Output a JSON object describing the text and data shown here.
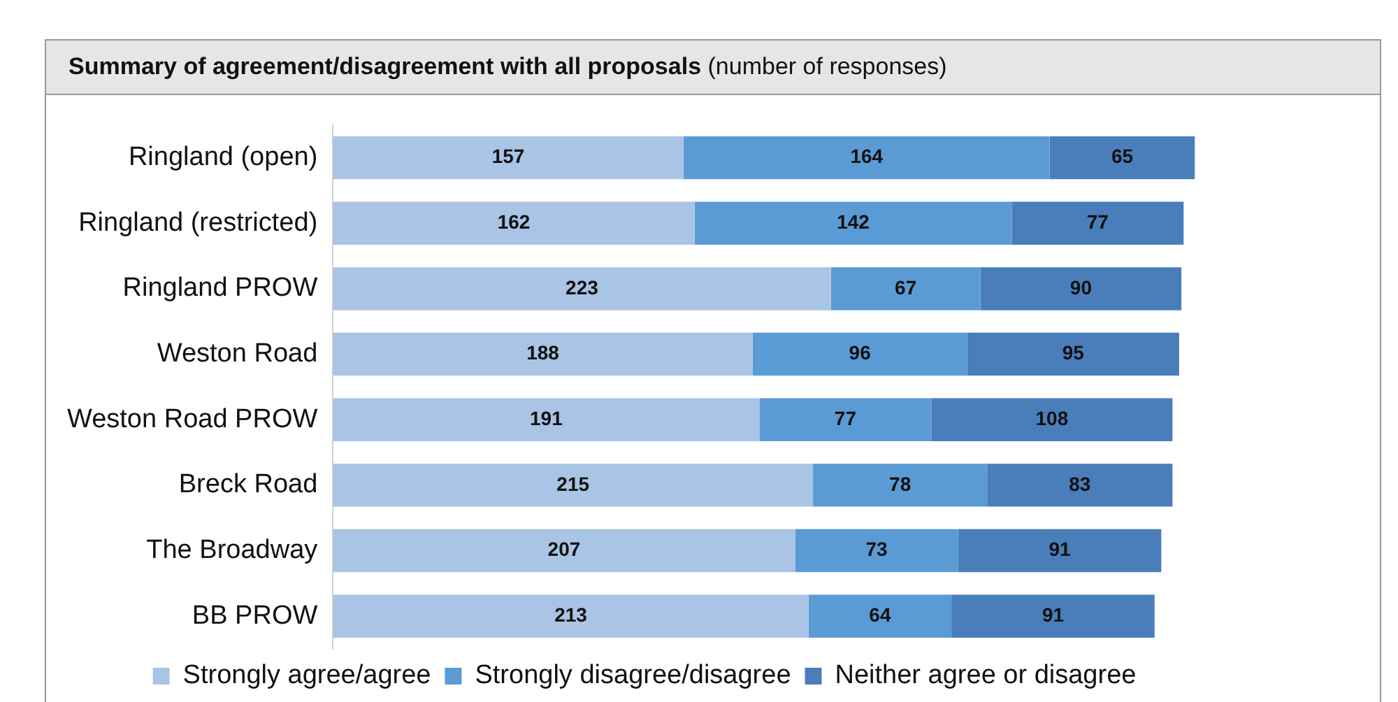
{
  "chart_data": {
    "type": "bar",
    "orientation": "horizontal",
    "stacked": true,
    "data_labels": true,
    "legend": "bottom",
    "tick_labels": "y",
    "title": "Summary of agreement/disagreement with all proposals",
    "subtitle": "(number of responses)",
    "categories": [
      "Ringland (open)",
      "Ringland (restricted)",
      "Ringland PROW",
      "Weston Road",
      "Weston Road PROW",
      "Breck Road",
      "The Broadway",
      "BB PROW"
    ],
    "series": [
      {
        "name": "Strongly agree/agree",
        "color": "#a9c4e4",
        "values": [
          157,
          162,
          223,
          188,
          191,
          215,
          207,
          213
        ]
      },
      {
        "name": "Strongly disagree/disagree",
        "color": "#5b9bd5",
        "values": [
          164,
          142,
          67,
          96,
          77,
          78,
          73,
          64
        ]
      },
      {
        "name": "Neither agree or disagree",
        "color": "#4a7ebb",
        "values": [
          65,
          77,
          90,
          95,
          108,
          83,
          91,
          91
        ]
      }
    ]
  }
}
